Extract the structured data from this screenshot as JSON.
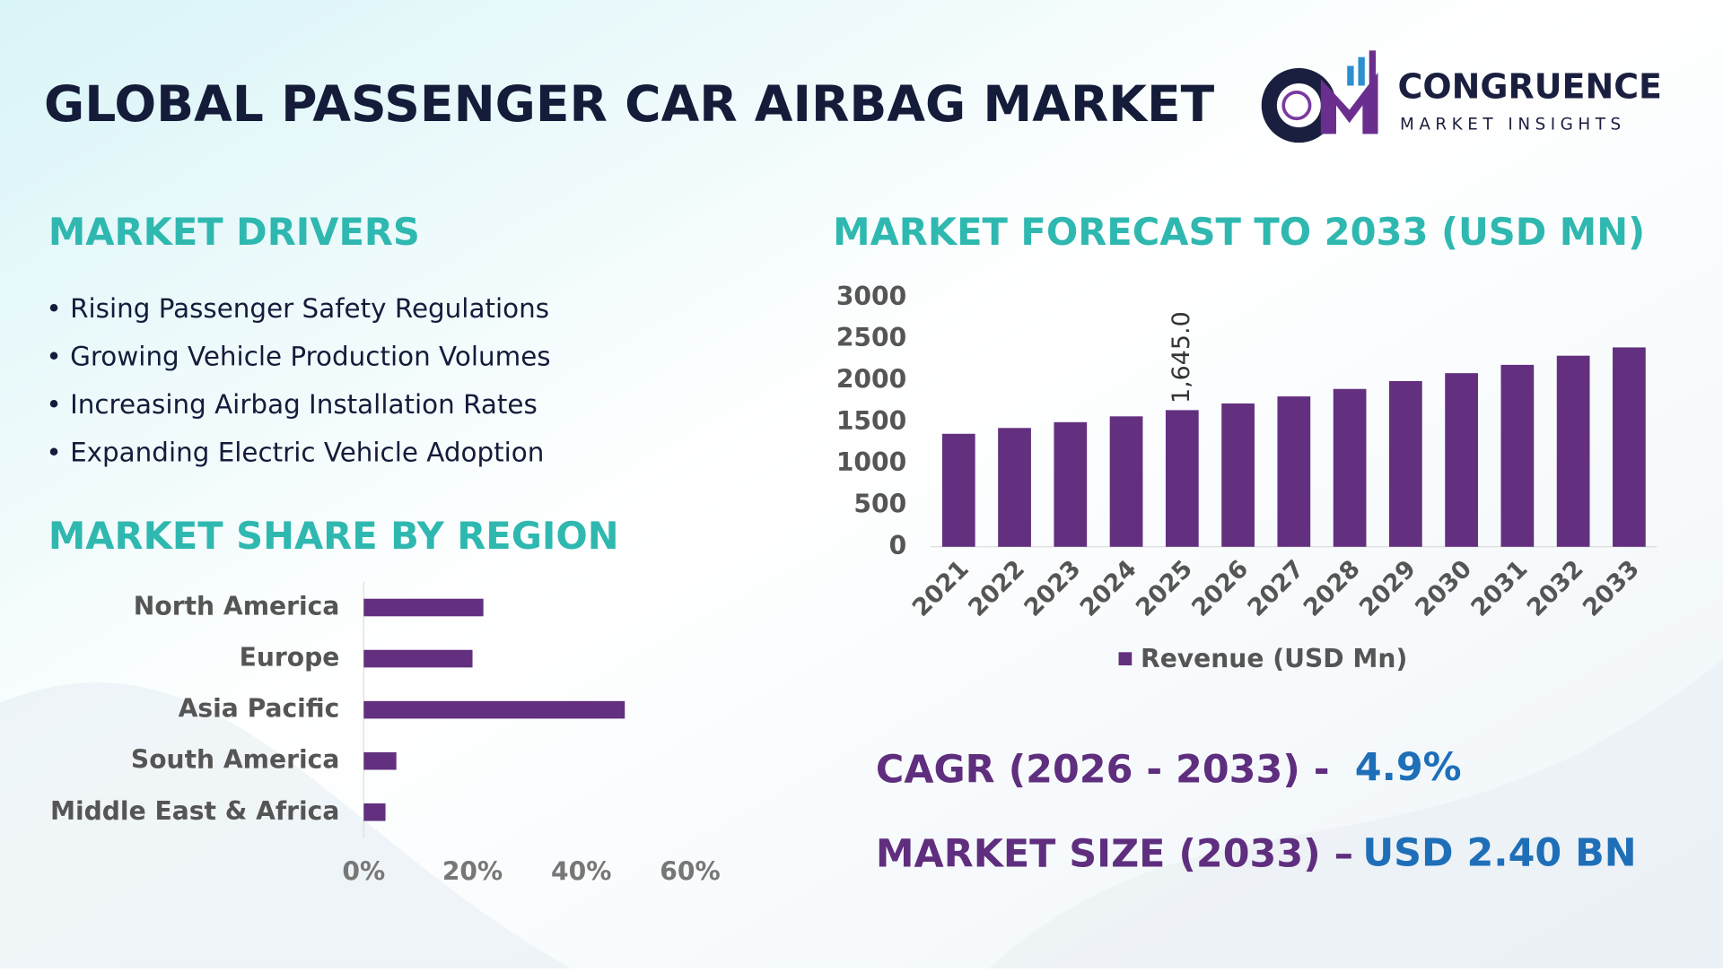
{
  "header": {
    "title": "GLOBAL PASSENGER CAR AIRBAG MARKET",
    "logo_name": "CONGRUENCE",
    "logo_tagline": "MARKET INSIGHTS"
  },
  "drivers": {
    "title": "MARKET DRIVERS",
    "items": [
      "• Rising Passenger Safety Regulations",
      "• Growing Vehicle Production Volumes",
      "• Increasing Airbag Installation Rates",
      "• Expanding Electric Vehicle Adoption"
    ]
  },
  "chart_data": [
    {
      "type": "barh",
      "title": "MARKET SHARE BY REGION",
      "categories": [
        "North America",
        "Europe",
        "Asia Pacific",
        "South America",
        "Middle East & Africa"
      ],
      "values": [
        22,
        20,
        48,
        6,
        4
      ],
      "color": "#62307f",
      "xlim": [
        0,
        60
      ],
      "xticks": [
        {
          "value": 0,
          "label": "0%"
        },
        {
          "value": 20,
          "label": "20%"
        },
        {
          "value": 40,
          "label": "40%"
        },
        {
          "value": 60,
          "label": "60%"
        }
      ]
    },
    {
      "type": "bar",
      "title": "MARKET FORECAST TO 2033 (USD MN)",
      "categories": [
        "2021",
        "2022",
        "2023",
        "2024",
        "2025",
        "2026",
        "2027",
        "2028",
        "2029",
        "2030",
        "2031",
        "2032",
        "2033"
      ],
      "series": [
        {
          "name": "Revenue (USD Mn)",
          "color": "#62307f",
          "values": [
            1360,
            1430,
            1500,
            1570,
            1645,
            1725,
            1810,
            1900,
            1995,
            2090,
            2190,
            2300,
            2400
          ],
          "value_labels": [
            null,
            null,
            null,
            null,
            "1,645.0",
            null,
            null,
            null,
            null,
            null,
            null,
            null,
            null
          ]
        }
      ],
      "ylim": [
        0,
        3000
      ],
      "yticks": [
        0,
        500,
        1000,
        1500,
        2000,
        2500,
        3000
      ],
      "legend": "bottom"
    }
  ],
  "summary": {
    "cagr_label": "CAGR (2026 - 2033) -",
    "cagr_value": "4.9%",
    "size_label": "MARKET SIZE (2033) –",
    "size_value": "USD 2.40 BN"
  }
}
